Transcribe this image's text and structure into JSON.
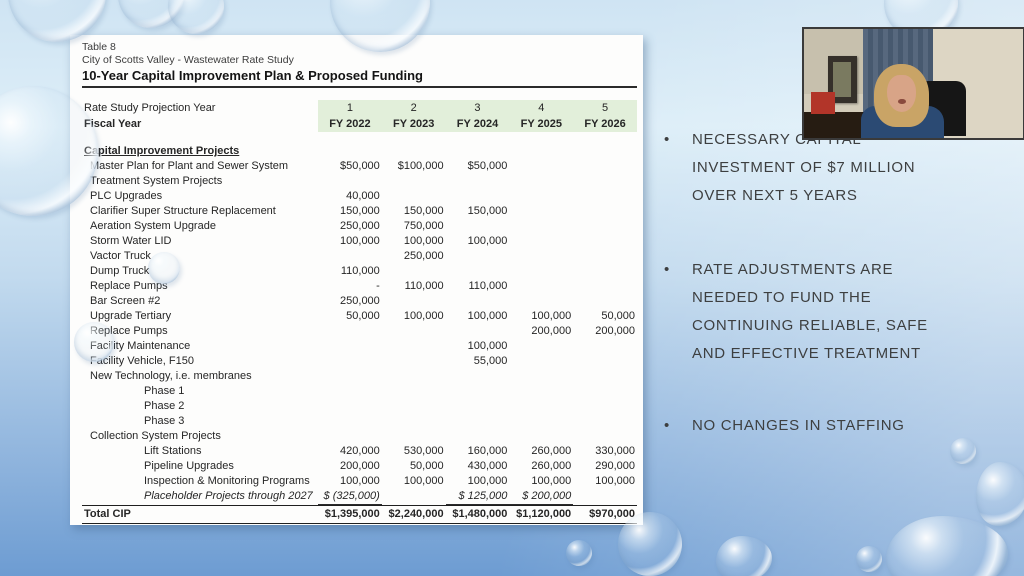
{
  "table": {
    "caption_line1": "Table 8",
    "caption_line2": "City of Scotts Valley - Wastewater Rate Study",
    "title": "10-Year Capital Improvement Plan & Proposed Funding",
    "projection_row_label": "Rate Study Projection Year",
    "fiscal_row_label": "Fiscal Year",
    "projection_years": [
      "1",
      "2",
      "3",
      "4",
      "5"
    ],
    "fiscal_years": [
      "FY 2022",
      "FY 2023",
      "FY 2024",
      "FY 2025",
      "FY 2026"
    ],
    "rows": [
      {
        "label": "Capital Improvement Projects",
        "indent": 0,
        "bold": true,
        "underline": true,
        "values": [
          "",
          "",
          "",
          "",
          ""
        ]
      },
      {
        "label": "Master Plan for Plant and Sewer System",
        "indent": 1,
        "values": [
          "$50,000",
          "$100,000",
          "$50,000",
          "",
          ""
        ]
      },
      {
        "label": "Treatment System Projects",
        "indent": 1,
        "values": [
          "",
          "",
          "",
          "",
          ""
        ]
      },
      {
        "label": "PLC Upgrades",
        "indent": 1,
        "values": [
          "40,000",
          "",
          "",
          "",
          ""
        ]
      },
      {
        "label": "Clarifier Super Structure Replacement",
        "indent": 1,
        "values": [
          "150,000",
          "150,000",
          "150,000",
          "",
          ""
        ]
      },
      {
        "label": "Aeration System Upgrade",
        "indent": 1,
        "values": [
          "250,000",
          "750,000",
          "",
          "",
          ""
        ]
      },
      {
        "label": "Storm Water LID",
        "indent": 1,
        "values": [
          "100,000",
          "100,000",
          "100,000",
          "",
          ""
        ]
      },
      {
        "label": "Vactor Truck",
        "indent": 1,
        "values": [
          "",
          "250,000",
          "",
          "",
          ""
        ]
      },
      {
        "label": "Dump Truck",
        "indent": 1,
        "values": [
          "110,000",
          "",
          "",
          "",
          ""
        ]
      },
      {
        "label": "Replace Pumps",
        "indent": 1,
        "values": [
          "-",
          "110,000",
          "110,000",
          "",
          ""
        ]
      },
      {
        "label": "Bar Screen #2",
        "indent": 1,
        "values": [
          "250,000",
          "",
          "",
          "",
          ""
        ]
      },
      {
        "label": "Upgrade Tertiary",
        "indent": 1,
        "values": [
          "50,000",
          "100,000",
          "100,000",
          "100,000",
          "50,000"
        ]
      },
      {
        "label": "Replace Pumps",
        "indent": 1,
        "values": [
          "",
          "",
          "",
          "200,000",
          "200,000"
        ]
      },
      {
        "label": "Facility Maintenance",
        "indent": 1,
        "values": [
          "",
          "",
          "100,000",
          "",
          ""
        ]
      },
      {
        "label": "Facility Vehicle, F150",
        "indent": 1,
        "values": [
          "",
          "",
          "55,000",
          "",
          ""
        ]
      },
      {
        "label": "New Technology, i.e. membranes",
        "indent": 1,
        "values": [
          "",
          "",
          "",
          "",
          ""
        ]
      },
      {
        "label": "Phase 1",
        "indent": 2,
        "values": [
          "",
          "",
          "",
          "",
          ""
        ]
      },
      {
        "label": "Phase 2",
        "indent": 2,
        "values": [
          "",
          "",
          "",
          "",
          ""
        ]
      },
      {
        "label": "Phase 3",
        "indent": 2,
        "values": [
          "",
          "",
          "",
          "",
          ""
        ]
      },
      {
        "label": "Collection System Projects",
        "indent": 1,
        "values": [
          "",
          "",
          "",
          "",
          ""
        ]
      },
      {
        "label": "Lift Stations",
        "indent": 2,
        "values": [
          "420,000",
          "530,000",
          "160,000",
          "260,000",
          "330,000"
        ]
      },
      {
        "label": "Pipeline Upgrades",
        "indent": 2,
        "values": [
          "200,000",
          "50,000",
          "430,000",
          "260,000",
          "290,000"
        ]
      },
      {
        "label": "Inspection & Monitoring Programs",
        "indent": 2,
        "values": [
          "100,000",
          "100,000",
          "100,000",
          "100,000",
          "100,000"
        ]
      },
      {
        "label": "Placeholder Projects through 2027",
        "indent": 2,
        "italic": true,
        "underline_values": true,
        "values": [
          "$ (325,000)",
          "",
          "$ 125,000",
          "$ 200,000",
          ""
        ]
      }
    ],
    "total_row": {
      "label": "Total CIP",
      "values": [
        "$1,395,000",
        "$2,240,000",
        "$1,480,000",
        "$1,120,000",
        "$970,000"
      ]
    }
  },
  "bullets": [
    {
      "marker": "•",
      "text": "NECESSARY CAPITAL\nINVESTMENT OF $7 MILLION\nOVER NEXT 5 YEARS"
    },
    {
      "marker": "•",
      "text": "RATE ADJUSTMENTS ARE\nNEEDED TO FUND THE\nCONTINUING RELIABLE, SAFE\nAND EFFECTIVE TREATMENT"
    },
    {
      "marker": "•",
      "text": "NO CHANGES IN STAFFING"
    }
  ],
  "colors": {
    "header_band_green": "#e2efda",
    "background_top": "#dceef8",
    "background_bottom": "#6d9cd2",
    "bullet_text": "#3d3f40",
    "panel_background": "#fdfdfc"
  }
}
